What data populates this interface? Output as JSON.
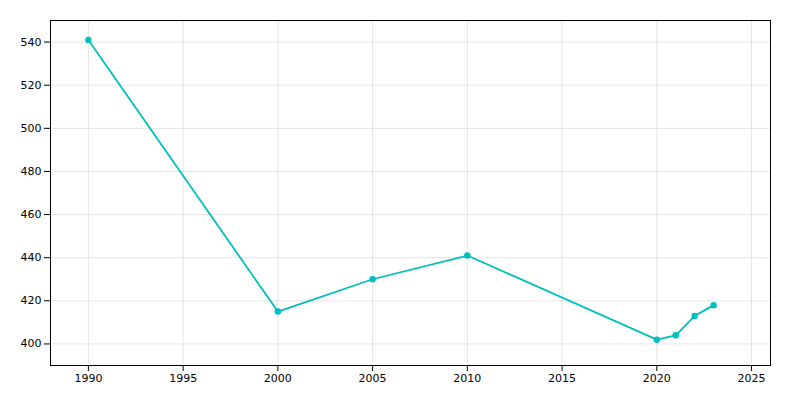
{
  "chart_data": {
    "type": "line",
    "x": [
      1990,
      2000,
      2005,
      2010,
      2020,
      2021,
      2022,
      2023
    ],
    "values": [
      541,
      415,
      430,
      441,
      402,
      404,
      413,
      418
    ],
    "color": "#00BFBF",
    "marker": "circle",
    "xlim": [
      1988,
      2026
    ],
    "ylim": [
      390,
      550
    ],
    "xticks": [
      1990,
      1995,
      2000,
      2005,
      2010,
      2015,
      2020,
      2025
    ],
    "yticks": [
      400,
      420,
      440,
      460,
      480,
      500,
      520,
      540
    ],
    "grid": true
  }
}
